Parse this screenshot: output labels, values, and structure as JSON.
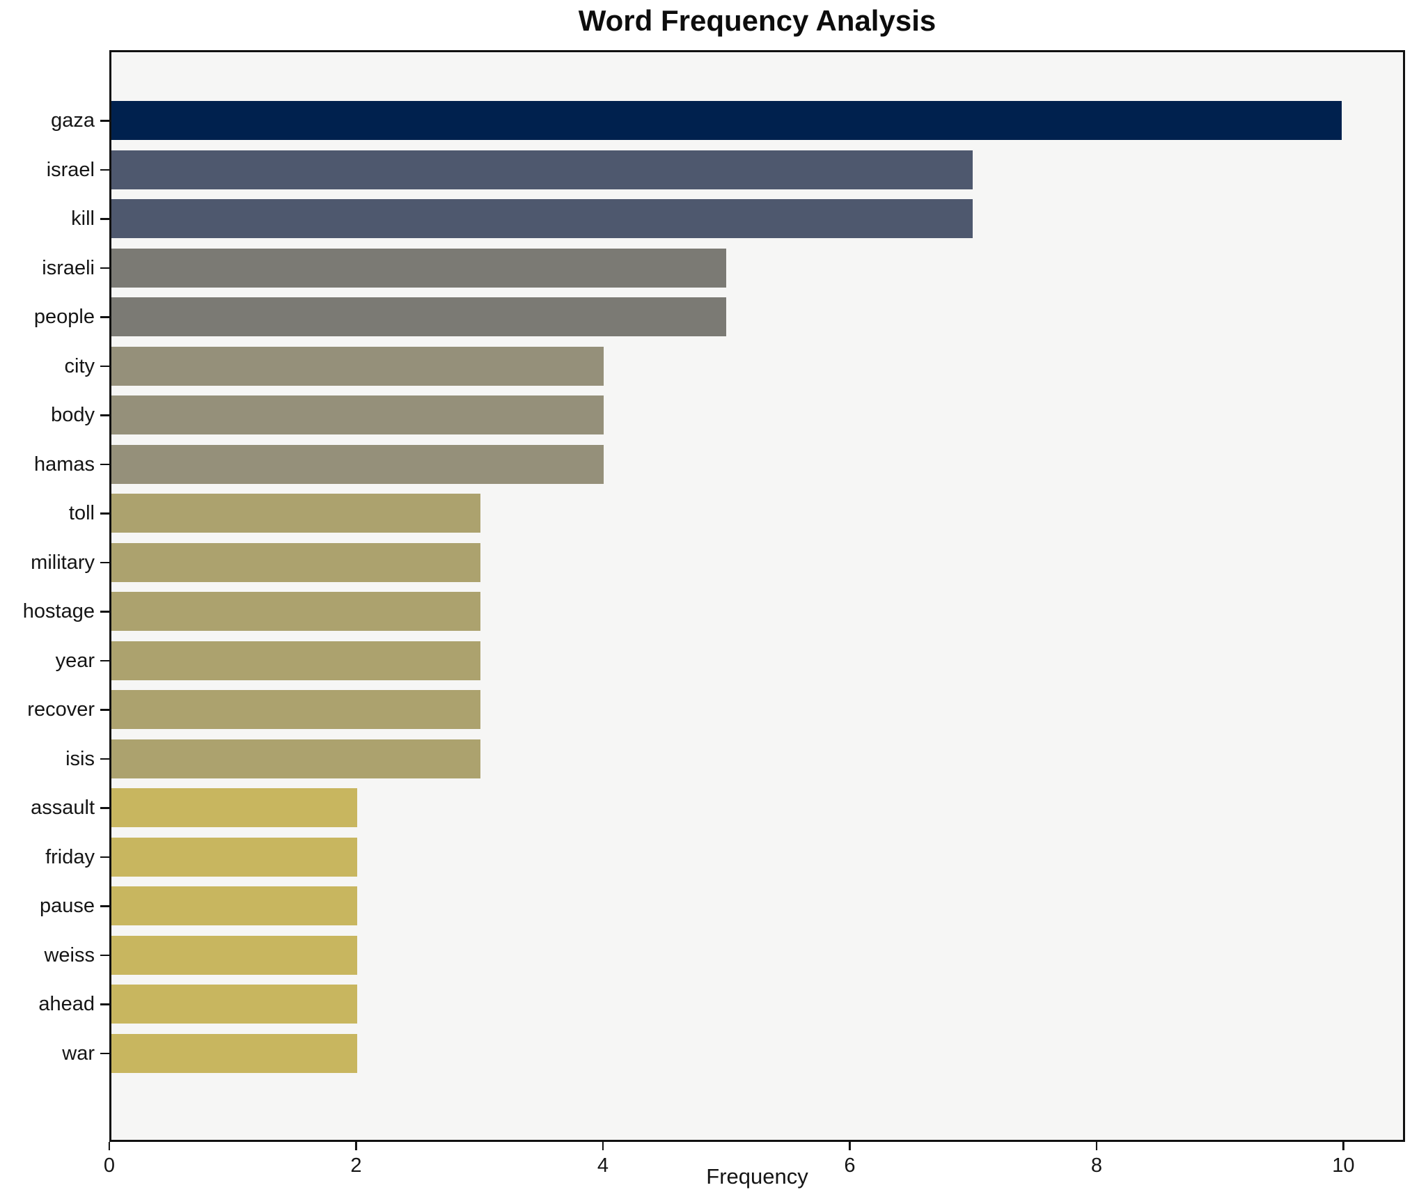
{
  "chart_data": {
    "type": "bar",
    "orientation": "horizontal",
    "title": "Word Frequency Analysis",
    "xlabel": "Frequency",
    "ylabel": "",
    "categories": [
      "gaza",
      "israel",
      "kill",
      "israeli",
      "people",
      "city",
      "body",
      "hamas",
      "toll",
      "military",
      "hostage",
      "year",
      "recover",
      "isis",
      "assault",
      "friday",
      "pause",
      "weiss",
      "ahead",
      "war"
    ],
    "values": [
      10,
      7,
      7,
      5,
      5,
      4,
      4,
      4,
      3,
      3,
      3,
      3,
      3,
      3,
      2,
      2,
      2,
      2,
      2,
      2
    ],
    "bar_colors": [
      "#00214e",
      "#4e586e",
      "#4e586e",
      "#7b7a74",
      "#7b7a74",
      "#95907a",
      "#95907a",
      "#95907a",
      "#aca26e",
      "#aca26e",
      "#aca26e",
      "#aca26e",
      "#aca26e",
      "#aca26e",
      "#c8b65f",
      "#c8b65f",
      "#c8b65f",
      "#c8b65f",
      "#c8b65f",
      "#c8b65f"
    ],
    "x_ticks": [
      0,
      2,
      4,
      6,
      8,
      10
    ],
    "xlim": [
      0,
      10.5
    ],
    "grid": false,
    "legend": "none",
    "plot_bg": "#f6f6f5",
    "figure_bg": "#ffffff",
    "spine_color": "#111111"
  }
}
